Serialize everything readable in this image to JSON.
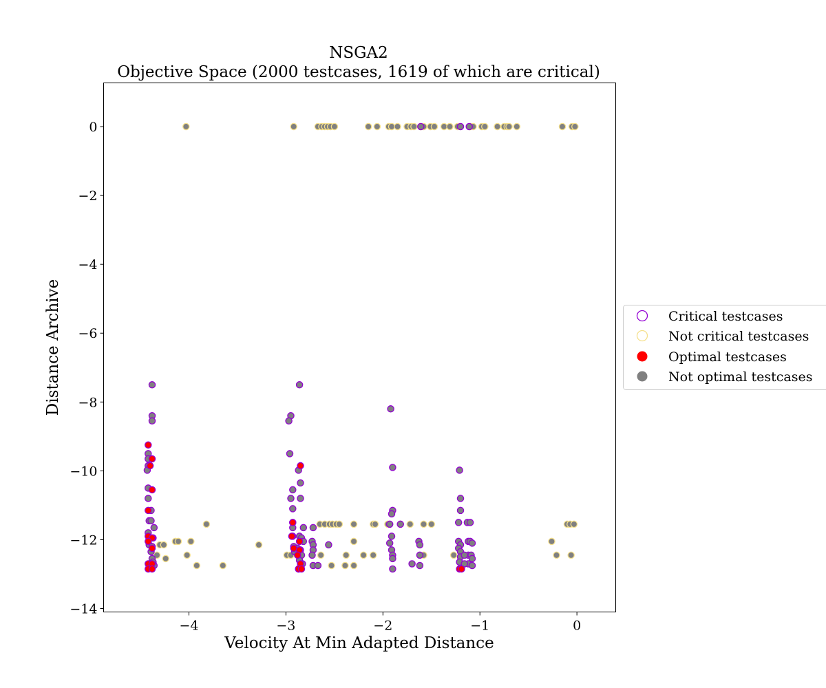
{
  "chart_data": {
    "type": "scatter",
    "title": "NSGA2",
    "subtitle": "Objective Space (2000 testcases, 1619 of which are critical)",
    "xlabel": "Velocity At Min Adapted Distance",
    "ylabel": "Distance Archive",
    "xlim": [
      -4.88,
      0.4
    ],
    "ylim": [
      -14.1,
      1.27
    ],
    "xticks": [
      -4,
      -3,
      -2,
      -1,
      0
    ],
    "yticks": [
      0,
      -2,
      -4,
      -6,
      -8,
      -10,
      -12,
      -14
    ],
    "xtick_labels": [
      "−4",
      "−3",
      "−2",
      "−1",
      "0"
    ],
    "ytick_labels": [
      "0",
      "−2",
      "−4",
      "−6",
      "−8",
      "−10",
      "−12",
      "−14"
    ],
    "grid": false,
    "legend_position": "right, outside",
    "legend": [
      {
        "label": "Critical testcases",
        "marker": "hollow-circle",
        "color": "#9400d3"
      },
      {
        "label": "Not critical testcases",
        "marker": "hollow-circle",
        "color": "#f5e08c"
      },
      {
        "label": "Optimal testcases",
        "marker": "filled-circle",
        "color": "#ff0000"
      },
      {
        "label": "Not optimal testcases",
        "marker": "filled-circle",
        "color": "#808080"
      }
    ],
    "series": [
      {
        "name": "Not critical testcases",
        "fill": "#808080",
        "stroke": "#f5e08c",
        "points": [
          [
            -4.03,
            0
          ],
          [
            -2.92,
            0
          ],
          [
            -2.67,
            0
          ],
          [
            -2.63,
            0
          ],
          [
            -2.6,
            0
          ],
          [
            -2.57,
            0
          ],
          [
            -2.54,
            0
          ],
          [
            -2.5,
            0
          ],
          [
            -2.15,
            0
          ],
          [
            -2.06,
            0
          ],
          [
            -1.94,
            0
          ],
          [
            -1.91,
            0
          ],
          [
            -1.85,
            0
          ],
          [
            -1.75,
            0
          ],
          [
            -1.71,
            0
          ],
          [
            -1.68,
            0
          ],
          [
            -1.61,
            0
          ],
          [
            -1.58,
            0
          ],
          [
            -1.51,
            0
          ],
          [
            -1.47,
            0
          ],
          [
            -1.37,
            0
          ],
          [
            -1.31,
            0
          ],
          [
            -1.23,
            0
          ],
          [
            -1.1,
            0
          ],
          [
            -1.07,
            0
          ],
          [
            -0.98,
            0
          ],
          [
            -0.95,
            0
          ],
          [
            -0.82,
            0
          ],
          [
            -0.75,
            0
          ],
          [
            -0.72,
            0
          ],
          [
            -0.7,
            0
          ],
          [
            -0.62,
            0
          ],
          [
            -0.15,
            0
          ],
          [
            -0.05,
            0
          ],
          [
            -0.02,
            0
          ],
          [
            -4.33,
            -12.45
          ],
          [
            -4.3,
            -12.15
          ],
          [
            -4.26,
            -12.15
          ],
          [
            -4.24,
            -12.55
          ],
          [
            -4.14,
            -12.05
          ],
          [
            -4.11,
            -12.05
          ],
          [
            -4.02,
            -12.45
          ],
          [
            -3.98,
            -12.05
          ],
          [
            -3.92,
            -12.75
          ],
          [
            -3.82,
            -11.55
          ],
          [
            -3.65,
            -12.75
          ],
          [
            -3.28,
            -12.15
          ],
          [
            -2.99,
            -12.45
          ],
          [
            -2.95,
            -12.45
          ],
          [
            -2.88,
            -12.45
          ],
          [
            -2.84,
            -12.45
          ],
          [
            -2.64,
            -12.45
          ],
          [
            -2.65,
            -11.55
          ],
          [
            -2.6,
            -11.55
          ],
          [
            -2.55,
            -11.55
          ],
          [
            -2.52,
            -11.55
          ],
          [
            -2.48,
            -11.55
          ],
          [
            -2.45,
            -11.55
          ],
          [
            -2.38,
            -12.45
          ],
          [
            -2.39,
            -12.75
          ],
          [
            -2.3,
            -12.05
          ],
          [
            -2.3,
            -12.75
          ],
          [
            -2.3,
            -11.55
          ],
          [
            -2.53,
            -12.75
          ],
          [
            -2.2,
            -12.45
          ],
          [
            -2.1,
            -11.55
          ],
          [
            -2.08,
            -11.55
          ],
          [
            -2.1,
            -12.45
          ],
          [
            -1.95,
            -11.55
          ],
          [
            -1.82,
            -11.55
          ],
          [
            -1.72,
            -11.55
          ],
          [
            -1.58,
            -11.55
          ],
          [
            -1.5,
            -11.55
          ],
          [
            -1.58,
            -12.45
          ],
          [
            -1.27,
            -12.45
          ],
          [
            -0.26,
            -12.05
          ],
          [
            -0.21,
            -12.45
          ],
          [
            -0.1,
            -11.55
          ],
          [
            -0.07,
            -11.55
          ],
          [
            -0.06,
            -12.45
          ],
          [
            -0.03,
            -11.55
          ]
        ]
      },
      {
        "name": "Critical testcases",
        "fill": "#808080",
        "stroke": "#9400d3",
        "points": [
          [
            -1.61,
            0
          ],
          [
            -1.2,
            0
          ],
          [
            -1.11,
            0
          ],
          [
            -4.38,
            -7.5
          ],
          [
            -4.38,
            -8.4
          ],
          [
            -4.38,
            -8.55
          ],
          [
            -4.42,
            -9.5
          ],
          [
            -4.42,
            -9.65
          ],
          [
            -4.42,
            -9.85
          ],
          [
            -4.43,
            -9.98
          ],
          [
            -4.42,
            -10.5
          ],
          [
            -4.42,
            -10.8
          ],
          [
            -4.39,
            -11.15
          ],
          [
            -4.41,
            -11.45
          ],
          [
            -4.39,
            -11.45
          ],
          [
            -4.36,
            -11.65
          ],
          [
            -4.42,
            -11.8
          ],
          [
            -4.37,
            -11.95
          ],
          [
            -4.41,
            -12.15
          ],
          [
            -4.38,
            -12.2
          ],
          [
            -4.39,
            -12.35
          ],
          [
            -4.38,
            -12.55
          ],
          [
            -4.37,
            -12.65
          ],
          [
            -4.41,
            -12.75
          ],
          [
            -4.36,
            -12.75
          ],
          [
            -2.86,
            -7.5
          ],
          [
            -2.95,
            -8.4
          ],
          [
            -2.97,
            -8.55
          ],
          [
            -2.96,
            -9.5
          ],
          [
            -2.87,
            -9.98
          ],
          [
            -2.85,
            -10.35
          ],
          [
            -2.93,
            -10.55
          ],
          [
            -2.95,
            -10.8
          ],
          [
            -2.85,
            -10.8
          ],
          [
            -2.93,
            -11.1
          ],
          [
            -2.93,
            -11.5
          ],
          [
            -2.93,
            -11.65
          ],
          [
            -2.93,
            -11.9
          ],
          [
            -2.86,
            -11.9
          ],
          [
            -2.84,
            -11.95
          ],
          [
            -2.82,
            -12.05
          ],
          [
            -2.92,
            -12.2
          ],
          [
            -2.88,
            -12.25
          ],
          [
            -2.85,
            -12.3
          ],
          [
            -2.91,
            -12.35
          ],
          [
            -2.84,
            -12.45
          ],
          [
            -2.86,
            -12.6
          ],
          [
            -2.83,
            -12.7
          ],
          [
            -2.87,
            -12.85
          ],
          [
            -2.82,
            -11.65
          ],
          [
            -2.72,
            -11.65
          ],
          [
            -2.73,
            -12.05
          ],
          [
            -2.72,
            -12.15
          ],
          [
            -2.72,
            -12.3
          ],
          [
            -2.73,
            -12.45
          ],
          [
            -2.72,
            -12.75
          ],
          [
            -2.67,
            -12.75
          ],
          [
            -2.56,
            -12.15
          ],
          [
            -1.92,
            -8.2
          ],
          [
            -1.9,
            -9.9
          ],
          [
            -1.9,
            -11.15
          ],
          [
            -1.91,
            -11.25
          ],
          [
            -1.93,
            -11.55
          ],
          [
            -1.91,
            -11.9
          ],
          [
            -1.93,
            -12.1
          ],
          [
            -1.91,
            -12.3
          ],
          [
            -1.9,
            -12.45
          ],
          [
            -1.9,
            -12.55
          ],
          [
            -1.9,
            -12.85
          ],
          [
            -1.82,
            -11.55
          ],
          [
            -1.7,
            -12.7
          ],
          [
            -1.63,
            -12.05
          ],
          [
            -1.62,
            -12.15
          ],
          [
            -1.62,
            -12.45
          ],
          [
            -1.62,
            -12.75
          ],
          [
            -1.21,
            -9.98
          ],
          [
            -1.2,
            -10.8
          ],
          [
            -1.2,
            -11.15
          ],
          [
            -1.22,
            -11.5
          ],
          [
            -1.13,
            -11.5
          ],
          [
            -1.1,
            -11.5
          ],
          [
            -1.22,
            -12.05
          ],
          [
            -1.2,
            -12.15
          ],
          [
            -1.22,
            -12.25
          ],
          [
            -1.2,
            -12.35
          ],
          [
            -1.2,
            -12.5
          ],
          [
            -1.21,
            -12.65
          ],
          [
            -1.12,
            -12.05
          ],
          [
            -1.1,
            -12.05
          ],
          [
            -1.08,
            -12.1
          ],
          [
            -1.12,
            -12.45
          ],
          [
            -1.09,
            -12.45
          ],
          [
            -1.08,
            -12.55
          ],
          [
            -1.12,
            -12.7
          ],
          [
            -1.08,
            -12.75
          ],
          [
            -1.16,
            -12.45
          ],
          [
            -1.16,
            -12.7
          ]
        ]
      },
      {
        "name": "Optimal testcases",
        "fill": "#ff0000",
        "stroke": "#9400d3",
        "points": [
          [
            -4.42,
            -9.25
          ],
          [
            -4.38,
            -9.65
          ],
          [
            -4.4,
            -9.85
          ],
          [
            -4.38,
            -10.55
          ],
          [
            -4.42,
            -11.15
          ],
          [
            -4.42,
            -11.9
          ],
          [
            -4.38,
            -11.95
          ],
          [
            -4.42,
            -12.05
          ],
          [
            -4.38,
            -12.25
          ],
          [
            -4.42,
            -12.7
          ],
          [
            -4.38,
            -12.7
          ],
          [
            -4.42,
            -12.85
          ],
          [
            -4.38,
            -12.85
          ],
          [
            -2.93,
            -11.5
          ],
          [
            -2.94,
            -11.9
          ],
          [
            -2.85,
            -9.85
          ],
          [
            -2.92,
            -12.25
          ],
          [
            -2.86,
            -12.3
          ],
          [
            -2.86,
            -12.05
          ],
          [
            -2.88,
            -12.45
          ],
          [
            -2.85,
            -12.7
          ],
          [
            -2.87,
            -12.85
          ],
          [
            -2.84,
            -12.85
          ],
          [
            -1.21,
            -12.85
          ],
          [
            -1.19,
            -12.85
          ]
        ]
      }
    ]
  }
}
